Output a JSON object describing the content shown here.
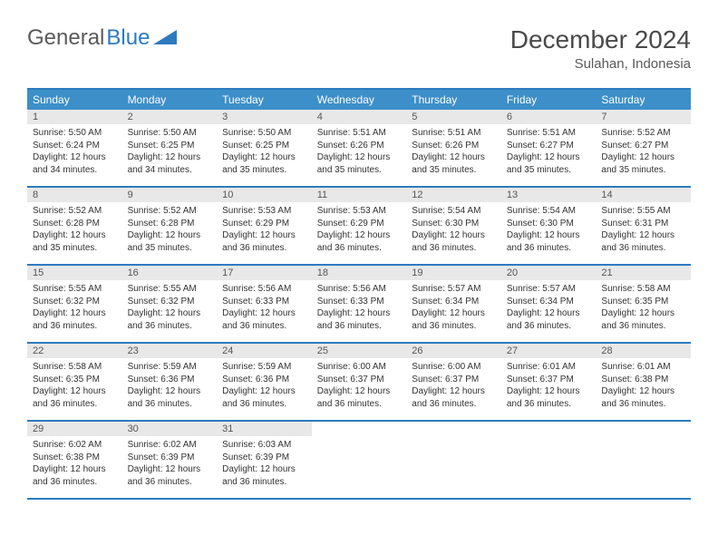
{
  "logo": {
    "text1": "General",
    "text2": "Blue"
  },
  "title": "December 2024",
  "location": "Sulahan, Indonesia",
  "colors": {
    "header_bg": "#3d8fc9",
    "rule": "#2d7bbf",
    "daynum_bg": "#e8e8e8",
    "text": "#333333"
  },
  "weekdays": [
    "Sunday",
    "Monday",
    "Tuesday",
    "Wednesday",
    "Thursday",
    "Friday",
    "Saturday"
  ],
  "days": [
    {
      "n": 1,
      "sr": "5:50 AM",
      "ss": "6:24 PM",
      "dl": "12 hours and 34 minutes."
    },
    {
      "n": 2,
      "sr": "5:50 AM",
      "ss": "6:25 PM",
      "dl": "12 hours and 34 minutes."
    },
    {
      "n": 3,
      "sr": "5:50 AM",
      "ss": "6:25 PM",
      "dl": "12 hours and 35 minutes."
    },
    {
      "n": 4,
      "sr": "5:51 AM",
      "ss": "6:26 PM",
      "dl": "12 hours and 35 minutes."
    },
    {
      "n": 5,
      "sr": "5:51 AM",
      "ss": "6:26 PM",
      "dl": "12 hours and 35 minutes."
    },
    {
      "n": 6,
      "sr": "5:51 AM",
      "ss": "6:27 PM",
      "dl": "12 hours and 35 minutes."
    },
    {
      "n": 7,
      "sr": "5:52 AM",
      "ss": "6:27 PM",
      "dl": "12 hours and 35 minutes."
    },
    {
      "n": 8,
      "sr": "5:52 AM",
      "ss": "6:28 PM",
      "dl": "12 hours and 35 minutes."
    },
    {
      "n": 9,
      "sr": "5:52 AM",
      "ss": "6:28 PM",
      "dl": "12 hours and 35 minutes."
    },
    {
      "n": 10,
      "sr": "5:53 AM",
      "ss": "6:29 PM",
      "dl": "12 hours and 36 minutes."
    },
    {
      "n": 11,
      "sr": "5:53 AM",
      "ss": "6:29 PM",
      "dl": "12 hours and 36 minutes."
    },
    {
      "n": 12,
      "sr": "5:54 AM",
      "ss": "6:30 PM",
      "dl": "12 hours and 36 minutes."
    },
    {
      "n": 13,
      "sr": "5:54 AM",
      "ss": "6:30 PM",
      "dl": "12 hours and 36 minutes."
    },
    {
      "n": 14,
      "sr": "5:55 AM",
      "ss": "6:31 PM",
      "dl": "12 hours and 36 minutes."
    },
    {
      "n": 15,
      "sr": "5:55 AM",
      "ss": "6:32 PM",
      "dl": "12 hours and 36 minutes."
    },
    {
      "n": 16,
      "sr": "5:55 AM",
      "ss": "6:32 PM",
      "dl": "12 hours and 36 minutes."
    },
    {
      "n": 17,
      "sr": "5:56 AM",
      "ss": "6:33 PM",
      "dl": "12 hours and 36 minutes."
    },
    {
      "n": 18,
      "sr": "5:56 AM",
      "ss": "6:33 PM",
      "dl": "12 hours and 36 minutes."
    },
    {
      "n": 19,
      "sr": "5:57 AM",
      "ss": "6:34 PM",
      "dl": "12 hours and 36 minutes."
    },
    {
      "n": 20,
      "sr": "5:57 AM",
      "ss": "6:34 PM",
      "dl": "12 hours and 36 minutes."
    },
    {
      "n": 21,
      "sr": "5:58 AM",
      "ss": "6:35 PM",
      "dl": "12 hours and 36 minutes."
    },
    {
      "n": 22,
      "sr": "5:58 AM",
      "ss": "6:35 PM",
      "dl": "12 hours and 36 minutes."
    },
    {
      "n": 23,
      "sr": "5:59 AM",
      "ss": "6:36 PM",
      "dl": "12 hours and 36 minutes."
    },
    {
      "n": 24,
      "sr": "5:59 AM",
      "ss": "6:36 PM",
      "dl": "12 hours and 36 minutes."
    },
    {
      "n": 25,
      "sr": "6:00 AM",
      "ss": "6:37 PM",
      "dl": "12 hours and 36 minutes."
    },
    {
      "n": 26,
      "sr": "6:00 AM",
      "ss": "6:37 PM",
      "dl": "12 hours and 36 minutes."
    },
    {
      "n": 27,
      "sr": "6:01 AM",
      "ss": "6:37 PM",
      "dl": "12 hours and 36 minutes."
    },
    {
      "n": 28,
      "sr": "6:01 AM",
      "ss": "6:38 PM",
      "dl": "12 hours and 36 minutes."
    },
    {
      "n": 29,
      "sr": "6:02 AM",
      "ss": "6:38 PM",
      "dl": "12 hours and 36 minutes."
    },
    {
      "n": 30,
      "sr": "6:02 AM",
      "ss": "6:39 PM",
      "dl": "12 hours and 36 minutes."
    },
    {
      "n": 31,
      "sr": "6:03 AM",
      "ss": "6:39 PM",
      "dl": "12 hours and 36 minutes."
    }
  ],
  "labels": {
    "sunrise": "Sunrise:",
    "sunset": "Sunset:",
    "daylight": "Daylight:"
  },
  "start_weekday": 0,
  "trailing_blanks": 4
}
